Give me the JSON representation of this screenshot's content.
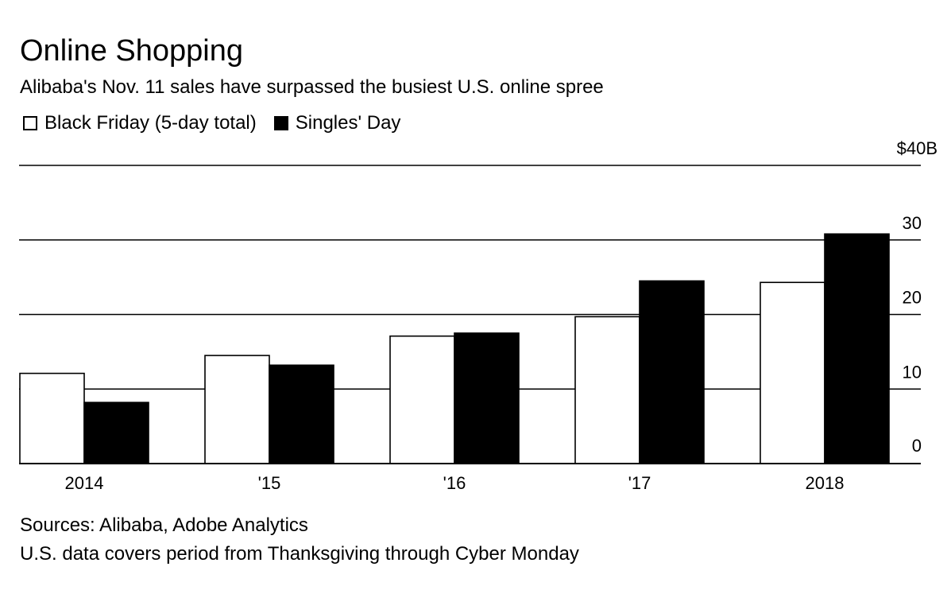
{
  "title": "Online Shopping",
  "subtitle": "Alibaba's Nov. 11 sales have surpassed the busiest U.S. online spree",
  "legend": {
    "black_friday": "Black Friday (5-day total)",
    "singles_day": "Singles' Day"
  },
  "footer": {
    "sources": "Sources: Alibaba, Adobe Analytics",
    "note": "U.S. data covers period from Thanksgiving through Cyber Monday"
  },
  "chart_data": {
    "type": "bar",
    "categories": [
      "2014",
      "'15",
      "'16",
      "'17",
      "2018"
    ],
    "series": [
      {
        "name": "Black Friday (5-day total)",
        "values": [
          12.1,
          14.5,
          17.1,
          19.7,
          24.3
        ],
        "color": "#ffffff"
      },
      {
        "name": "Singles' Day",
        "values": [
          8.2,
          13.2,
          17.5,
          24.5,
          30.8
        ],
        "color": "#000000"
      }
    ],
    "y_ticks": [
      {
        "value": 0,
        "label": "0"
      },
      {
        "value": 10,
        "label": "10"
      },
      {
        "value": 20,
        "label": "20"
      },
      {
        "value": 30,
        "label": "30"
      },
      {
        "value": 40,
        "label": "$40B"
      }
    ],
    "ylim": [
      0,
      40
    ],
    "grid": true,
    "legend_position": "top-left"
  }
}
